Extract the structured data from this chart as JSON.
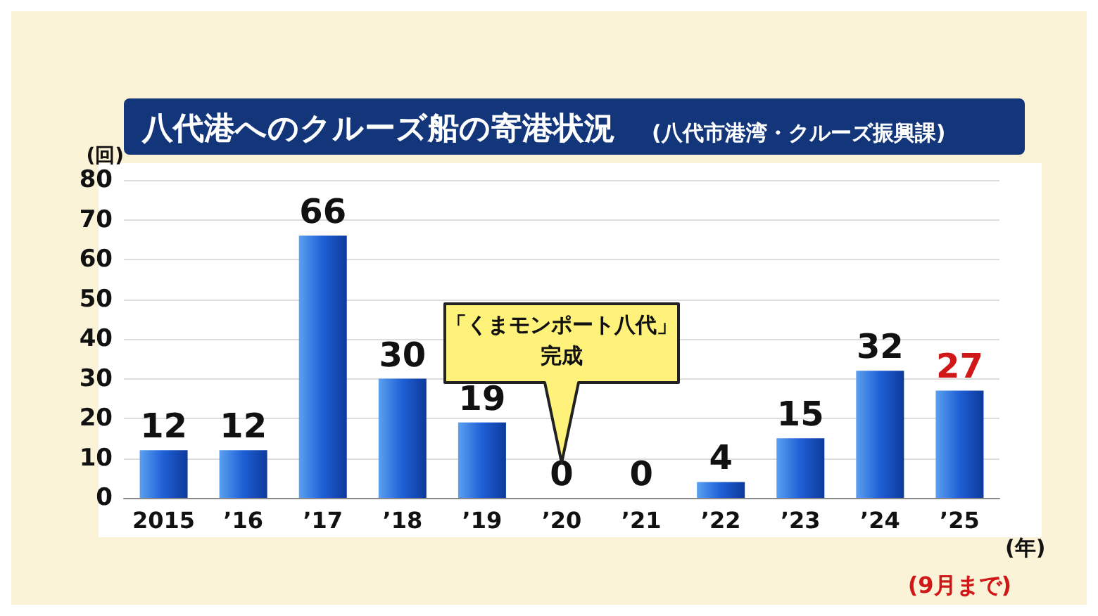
{
  "chart_data": {
    "type": "bar",
    "title": "八代港へのクルーズ船の寄港状況",
    "subtitle": "(八代市港湾・クルーズ振興課)",
    "ylabel": "(回)",
    "xlabel": "(年)",
    "categories": [
      "2015",
      "’16",
      "’17",
      "’18",
      "’19",
      "’20",
      "’21",
      "’22",
      "’23",
      "’24",
      "’25"
    ],
    "values": [
      12,
      12,
      66,
      30,
      19,
      0,
      0,
      4,
      15,
      32,
      27
    ],
    "color": "#1f5fd6",
    "ylim": [
      0,
      80
    ],
    "yticks": [
      0,
      10,
      20,
      30,
      40,
      50,
      60,
      70,
      80
    ],
    "grid": "y",
    "data_labels": true,
    "annotations": [
      "「くまモンポート八代」完成",
      "(9月まで)"
    ]
  }
}
